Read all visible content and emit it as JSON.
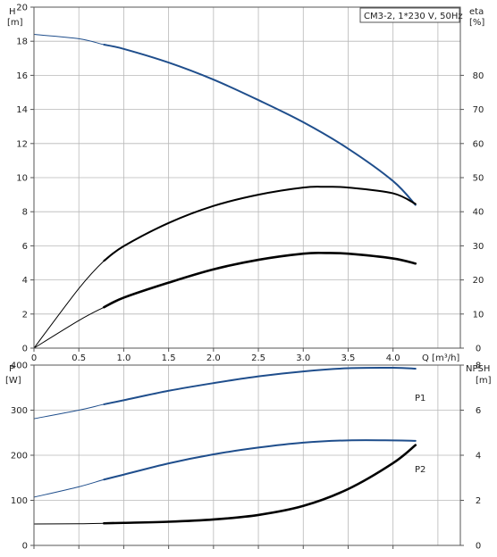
{
  "chart_data": [
    {
      "type": "line",
      "name": "top",
      "info_box": "CM3-2, 1*230 V, 50Hz",
      "x_label": "Q [m³/h]",
      "left_axis": {
        "label": "H",
        "unit": "[m]",
        "ylim": [
          0,
          20
        ],
        "ticks": [
          0,
          2,
          4,
          6,
          8,
          10,
          12,
          14,
          16,
          18,
          20
        ]
      },
      "right_axis": {
        "label": "eta",
        "unit": "[%]",
        "ylim": [
          0,
          100
        ],
        "ticks": [
          0,
          10,
          20,
          30,
          40,
          50,
          60,
          70,
          80
        ]
      },
      "xlim": [
        0,
        4.75
      ],
      "x_ticks": [
        0,
        0.5,
        1.0,
        1.5,
        2.0,
        2.5,
        3.0,
        3.5,
        4.0
      ],
      "x_tick_labels": [
        "0",
        "0.5",
        "1.0",
        "1.5",
        "2.0",
        "2.5",
        "3.0",
        "3.5",
        "4.0"
      ],
      "grid": true,
      "series": [
        {
          "key": "H",
          "axis": "left",
          "color": "#1f4e8c",
          "x": [
            0,
            0.5,
            0.78,
            1.0,
            1.5,
            2.0,
            2.5,
            3.0,
            3.5,
            4.0,
            4.25
          ],
          "y": [
            18.4,
            18.15,
            17.8,
            17.55,
            16.75,
            15.75,
            14.55,
            13.25,
            11.7,
            9.8,
            8.4
          ],
          "op_start": 0.78,
          "op_end": 4.25
        },
        {
          "key": "eta_pump",
          "axis": "right",
          "color": "#000000",
          "x": [
            0,
            0.5,
            0.78,
            1.0,
            1.5,
            2.0,
            2.5,
            3.0,
            3.25,
            3.5,
            4.0,
            4.25
          ],
          "y": [
            0,
            17.5,
            25.6,
            29.9,
            36.7,
            41.7,
            45.0,
            47.1,
            47.3,
            47.1,
            45.4,
            42.3
          ],
          "op_start": 0.78,
          "op_end": 4.25
        },
        {
          "key": "eta_total",
          "axis": "right",
          "color": "#000000",
          "x": [
            0,
            0.5,
            0.78,
            1.0,
            1.5,
            2.0,
            2.5,
            3.0,
            3.25,
            3.5,
            4.0,
            4.25
          ],
          "y": [
            0,
            8.1,
            12.0,
            14.8,
            19.2,
            23.1,
            25.9,
            27.7,
            27.9,
            27.7,
            26.3,
            24.8
          ],
          "op_start": 0.78,
          "op_end": 4.25,
          "bold_op": true
        }
      ]
    },
    {
      "type": "line",
      "name": "bottom",
      "left_axis": {
        "label": "P",
        "unit": "[W]",
        "ylim": [
          0,
          400
        ],
        "ticks": [
          0,
          100,
          200,
          300,
          400
        ]
      },
      "right_axis": {
        "label": "NPSH",
        "unit": "[m]",
        "ylim": [
          0,
          8
        ],
        "ticks": [
          0,
          2,
          4,
          6,
          8
        ]
      },
      "xlim": [
        0,
        4.75
      ],
      "grid": true,
      "series": [
        {
          "key": "P1",
          "label": "P1",
          "axis": "left",
          "color": "#1f4e8c",
          "x": [
            0,
            0.5,
            0.78,
            1.0,
            1.5,
            2.0,
            2.5,
            3.0,
            3.5,
            4.0,
            4.25
          ],
          "y": [
            281,
            300,
            313,
            322,
            343,
            360,
            375,
            386,
            393,
            394,
            392
          ],
          "op_start": 0.78,
          "op_end": 4.25
        },
        {
          "key": "P2",
          "label": "P2",
          "axis": "left",
          "color": "#1f4e8c",
          "x": [
            0,
            0.5,
            0.78,
            1.0,
            1.5,
            2.0,
            2.5,
            3.0,
            3.5,
            4.0,
            4.25
          ],
          "y": [
            107,
            130,
            146,
            157,
            182,
            202,
            217,
            228,
            233,
            233,
            232
          ],
          "op_start": 0.78,
          "op_end": 4.25
        },
        {
          "key": "NPSH",
          "axis": "right",
          "color": "#000000",
          "x": [
            0,
            0.5,
            0.78,
            1.0,
            1.5,
            2.0,
            2.5,
            3.0,
            3.5,
            4.0,
            4.25
          ],
          "y": [
            0.95,
            0.96,
            0.98,
            1.0,
            1.05,
            1.15,
            1.35,
            1.75,
            2.5,
            3.65,
            4.45
          ],
          "op_start": 0.78,
          "op_end": 4.25,
          "bold_op": true
        }
      ]
    }
  ]
}
